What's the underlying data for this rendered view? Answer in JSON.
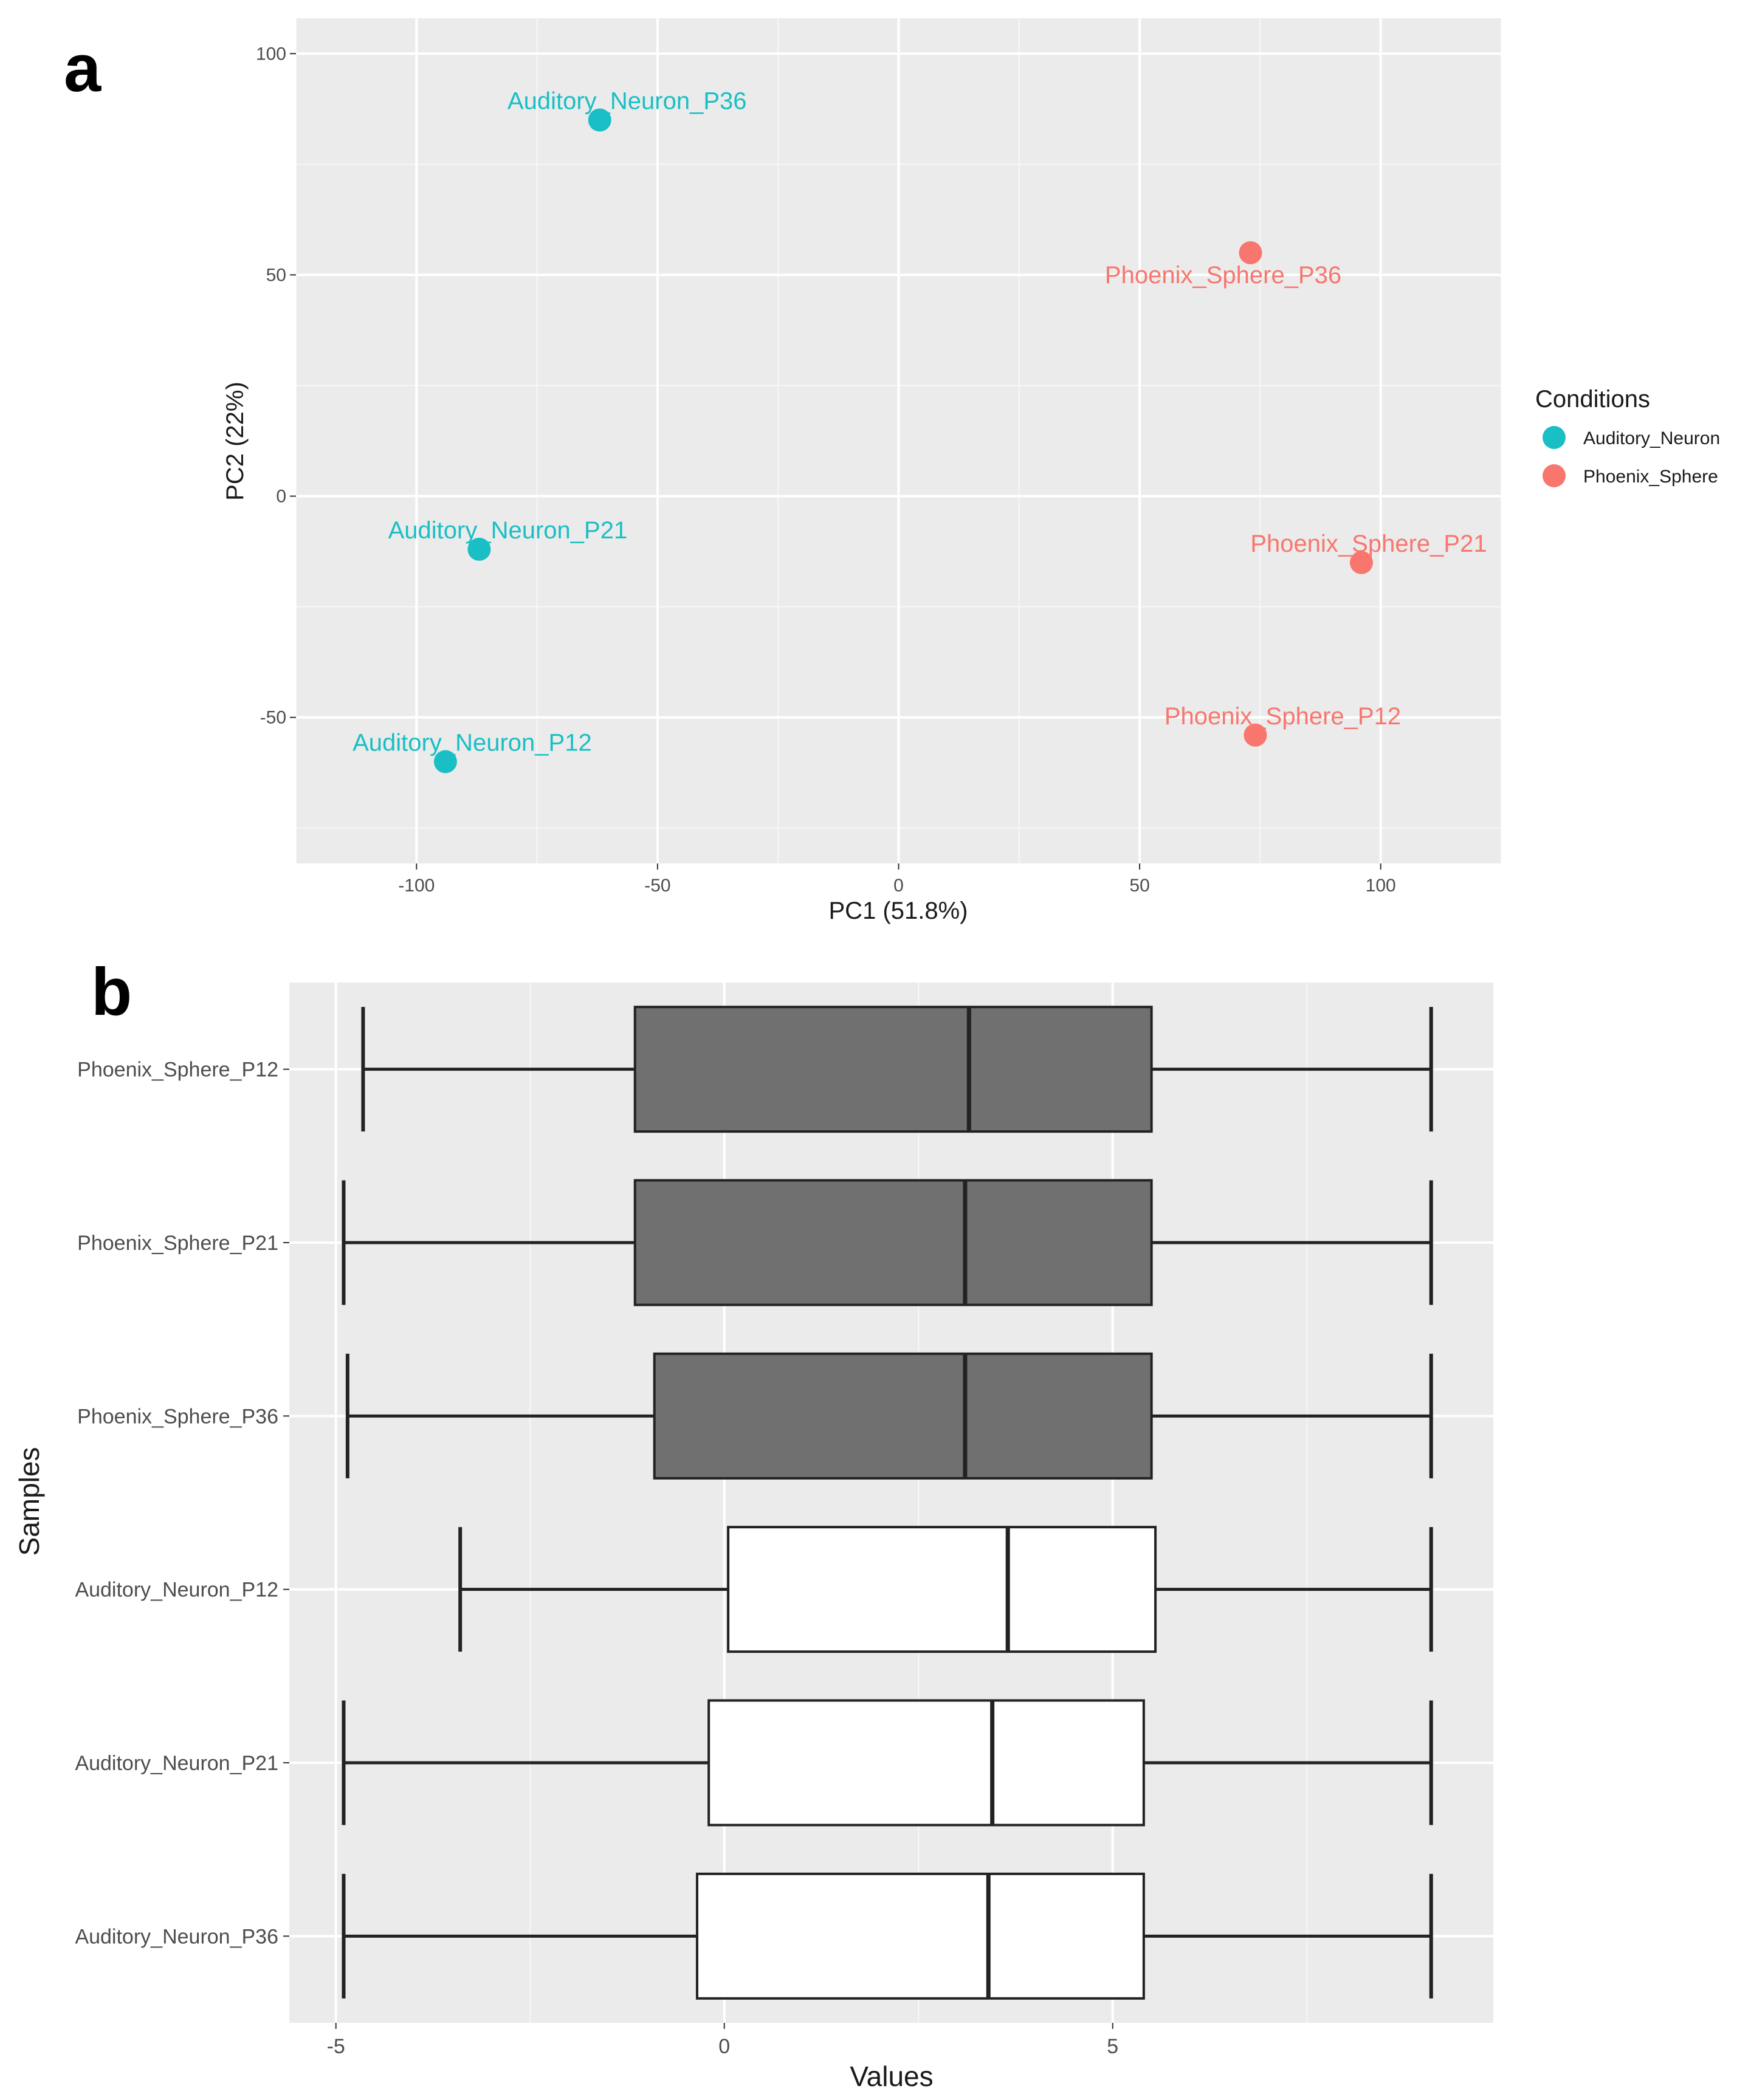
{
  "panels": {
    "a": "a",
    "b": "b"
  },
  "colors": {
    "panel_bg": "#ebebeb",
    "grid": "#ffffff",
    "auditory": "#19bfc4",
    "phoenix": "#f8766d",
    "box_dark": "#707070",
    "box_light": "#ffffff",
    "box_line": "#222222"
  },
  "chart_data": [
    {
      "type": "scatter",
      "xlabel": "PC1 (51.8%)",
      "ylabel": "PC2 (22%)",
      "xlim": [
        -125,
        125
      ],
      "ylim": [
        -83,
        108
      ],
      "xticks": [
        -100,
        -50,
        0,
        50,
        100
      ],
      "yticks": [
        -50,
        0,
        50,
        100
      ],
      "grid": true,
      "legend": {
        "title": "Conditions",
        "position": "right",
        "entries": [
          "Auditory_Neuron",
          "Phoenix_Sphere"
        ]
      },
      "points": [
        {
          "label": "Auditory_Neuron_P36",
          "condition": "Auditory_Neuron",
          "x": -62,
          "y": 85
        },
        {
          "label": "Auditory_Neuron_P21",
          "condition": "Auditory_Neuron",
          "x": -87,
          "y": -12
        },
        {
          "label": "Auditory_Neuron_P12",
          "condition": "Auditory_Neuron",
          "x": -94,
          "y": -60
        },
        {
          "label": "Phoenix_Sphere_P36",
          "condition": "Phoenix_Sphere",
          "x": 73,
          "y": 55
        },
        {
          "label": "Phoenix_Sphere_P21",
          "condition": "Phoenix_Sphere",
          "x": 96,
          "y": -15
        },
        {
          "label": "Phoenix_Sphere_P12",
          "condition": "Phoenix_Sphere",
          "x": 74,
          "y": -54
        }
      ]
    },
    {
      "type": "box",
      "orientation": "horizontal",
      "xlabel": "Values",
      "ylabel": "Samples",
      "xlim": [
        -5.6,
        9.9
      ],
      "xticks": [
        -5,
        0,
        5
      ],
      "grid": true,
      "boxes": [
        {
          "name": "Phoenix_Sphere_P12",
          "group": "Phoenix_Sphere",
          "min": -4.65,
          "q1": -1.15,
          "median": 3.15,
          "q3": 5.5,
          "max": 9.1
        },
        {
          "name": "Phoenix_Sphere_P21",
          "group": "Phoenix_Sphere",
          "min": -4.9,
          "q1": -1.15,
          "median": 3.1,
          "q3": 5.5,
          "max": 9.1
        },
        {
          "name": "Phoenix_Sphere_P36",
          "group": "Phoenix_Sphere",
          "min": -4.85,
          "q1": -0.9,
          "median": 3.1,
          "q3": 5.5,
          "max": 9.1
        },
        {
          "name": "Auditory_Neuron_P12",
          "group": "Auditory_Neuron",
          "min": -3.4,
          "q1": 0.05,
          "median": 3.65,
          "q3": 5.55,
          "max": 9.1
        },
        {
          "name": "Auditory_Neuron_P21",
          "group": "Auditory_Neuron",
          "min": -4.9,
          "q1": -0.2,
          "median": 3.45,
          "q3": 5.4,
          "max": 9.1
        },
        {
          "name": "Auditory_Neuron_P36",
          "group": "Auditory_Neuron",
          "min": -4.9,
          "q1": -0.35,
          "median": 3.4,
          "q3": 5.4,
          "max": 9.1
        }
      ]
    }
  ]
}
